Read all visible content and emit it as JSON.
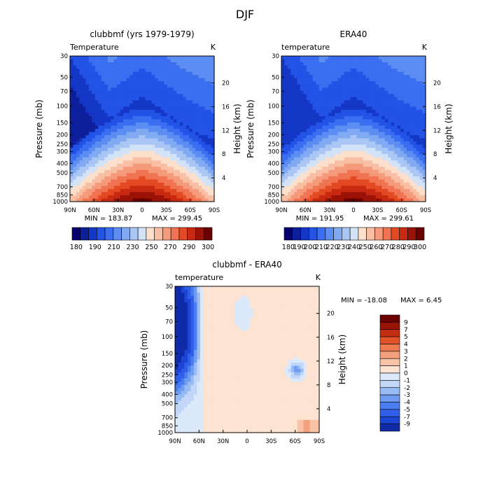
{
  "figure_title": "DJF",
  "colors": {
    "abs_levels": [
      "#08006e",
      "#0d1f9a",
      "#1437c6",
      "#2252e6",
      "#3b6ef0",
      "#5b8df2",
      "#82aaf3",
      "#aac6f4",
      "#d2e2f7",
      "#fde0cc",
      "#f9bfa5",
      "#f59b7c",
      "#f07452",
      "#e34a24",
      "#c72a10",
      "#9b1206",
      "#6b0000"
    ],
    "diff_levels": [
      "#08006e",
      "#0f2ba8",
      "#1c45d4",
      "#2f5fe8",
      "#4a7df0",
      "#6f9cf2",
      "#98bbf4",
      "#c2d7f7",
      "#dce9fa",
      "#fde3d2",
      "#f8c3a6",
      "#f3a07c",
      "#ee7a50",
      "#e0522a",
      "#c42e10",
      "#9a1405",
      "#6b0000"
    ]
  },
  "chart_data": [
    {
      "type": "heatmap",
      "title": "clubbmf (yrs 1979-1979)",
      "variable_label": "Temperature",
      "units": "K",
      "xlabel": "",
      "ylabel": "Pressure (mb)",
      "y2label": "Height (km)",
      "x_ticks": [
        "90N",
        "60N",
        "30N",
        "0",
        "30S",
        "60S",
        "90S"
      ],
      "y_ticks": [
        "30",
        "50",
        "70",
        "100",
        "150",
        "200",
        "250",
        "300",
        "400",
        "500",
        "700",
        "850",
        "1000"
      ],
      "y2_ticks": [
        "20",
        "16",
        "12",
        "8",
        "4"
      ],
      "min_text": "MIN = 183.87",
      "max_text": "MAX = 299.45",
      "min": 183.87,
      "max": 299.45,
      "colorbar_labels": [
        "180",
        "190",
        "200",
        "210",
        "220",
        "230",
        "240",
        "250",
        "260",
        "270",
        "280",
        "290",
        "300"
      ],
      "colorbar_label_text": [
        "180",
        "190",
        "210",
        "230",
        "250",
        "270",
        "290",
        "300"
      ]
    },
    {
      "type": "heatmap",
      "title": "ERA40",
      "variable_label": "temperature",
      "units": "K",
      "xlabel": "",
      "ylabel": "Pressure (mb)",
      "y2label": "Height (km)",
      "x_ticks": [
        "90N",
        "60N",
        "30N",
        "0",
        "30S",
        "60S",
        "90S"
      ],
      "y_ticks": [
        "30",
        "50",
        "70",
        "100",
        "150",
        "200",
        "250",
        "300",
        "400",
        "500",
        "700",
        "850",
        "1000"
      ],
      "y2_ticks": [
        "20",
        "16",
        "12",
        "8",
        "4"
      ],
      "min_text": "MIN = 191.95",
      "max_text": "MAX = 299.61",
      "min": 191.95,
      "max": 299.61,
      "colorbar_label_text": [
        "180",
        "190",
        "200",
        "210",
        "220",
        "230",
        "240",
        "250",
        "260",
        "270",
        "280",
        "290",
        "300"
      ]
    },
    {
      "type": "heatmap",
      "title": "clubbmf - ERA40",
      "variable_label": "temperature",
      "units": "K",
      "xlabel": "",
      "ylabel": "Pressure (mb)",
      "y2label": "Height (km)",
      "x_ticks": [
        "90N",
        "60N",
        "30N",
        "0",
        "30S",
        "60S",
        "90S"
      ],
      "y_ticks": [
        "30",
        "50",
        "70",
        "100",
        "150",
        "200",
        "250",
        "300",
        "400",
        "500",
        "700",
        "850",
        "1000"
      ],
      "y2_ticks": [
        "20",
        "16",
        "12",
        "8",
        "4"
      ],
      "min_text": "MIN = -18.08",
      "max_text": "MAX =    6.45",
      "min": -18.08,
      "max": 6.45,
      "colorbar_label_text": [
        "9",
        "7",
        "5",
        "4",
        "3",
        "2",
        "1",
        "0",
        "-1",
        "-2",
        "-3",
        "-4",
        "-5",
        "-7",
        "-9"
      ]
    }
  ]
}
